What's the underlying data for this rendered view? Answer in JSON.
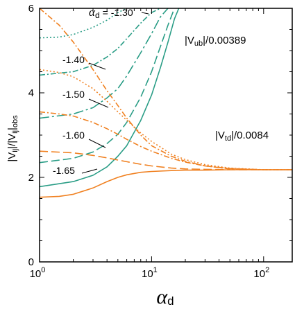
{
  "chart_data": {
    "type": "line",
    "xlabel_symbol": "α",
    "xlabel_sub": "d",
    "ylabel_main": "|V",
    "ylabel_sub1": "ij",
    "ylabel_mid": "|/|V",
    "ylabel_sub2": "ij",
    "ylabel_end": "|",
    "ylabel_sub3": "obs",
    "x_scale": "log",
    "xlim": [
      1,
      180
    ],
    "ylim": [
      0,
      6
    ],
    "x_ticks": [
      {
        "value": 1,
        "base": "10",
        "exp": "0"
      },
      {
        "value": 10,
        "base": "10",
        "exp": "1"
      },
      {
        "value": 100,
        "base": "10",
        "exp": "2"
      }
    ],
    "y_ticks": [
      0,
      2,
      4,
      6
    ],
    "colors": {
      "vub": "#2a9d86",
      "vtd": "#f08020"
    },
    "group_labels": {
      "vub": {
        "pre": "|V",
        "sub": "ub",
        "post": "|/0.00389"
      },
      "vtd": {
        "pre": "|V",
        "sub": "td",
        "post": "|/0.0084"
      }
    },
    "curve_labels": [
      {
        "param": "-1.30",
        "prefix": "α",
        "prefix_sub": "d",
        "eq": "= "
      },
      {
        "param": "-1.40"
      },
      {
        "param": "-1.50"
      },
      {
        "param": "-1.60"
      },
      {
        "param": "-1.65"
      }
    ],
    "series": [
      {
        "group": "vub",
        "param": "-1.30",
        "dash": "dotted",
        "x": [
          1,
          1.5,
          2,
          3,
          4,
          5,
          6
        ],
        "y": [
          5.3,
          5.32,
          5.38,
          5.55,
          5.72,
          5.9,
          6.0
        ]
      },
      {
        "group": "vub",
        "param": "-1.40",
        "dash": "dashdot",
        "x": [
          1,
          2,
          3,
          4,
          5,
          6,
          8,
          10,
          12
        ],
        "y": [
          4.42,
          4.5,
          4.65,
          4.85,
          5.05,
          5.28,
          5.65,
          5.9,
          6.0
        ]
      },
      {
        "group": "vub",
        "param": "-1.50",
        "dash": "longdashdot",
        "x": [
          1,
          2,
          3,
          4,
          5,
          6,
          8,
          10,
          12,
          14
        ],
        "y": [
          3.4,
          3.5,
          3.65,
          3.88,
          4.1,
          4.4,
          4.95,
          5.4,
          5.8,
          6.0
        ]
      },
      {
        "group": "vub",
        "param": "-1.60",
        "dash": "longdash",
        "x": [
          1,
          2,
          3,
          4,
          5,
          6,
          8,
          10,
          12,
          14,
          16
        ],
        "y": [
          2.35,
          2.45,
          2.6,
          2.8,
          3.02,
          3.3,
          3.9,
          4.5,
          5.1,
          5.6,
          6.0
        ]
      },
      {
        "group": "vub",
        "param": "-1.65",
        "dash": "solid",
        "x": [
          1,
          2,
          3,
          4,
          5,
          6,
          8,
          10,
          12,
          14,
          16,
          17.5
        ],
        "y": [
          1.78,
          1.9,
          2.05,
          2.25,
          2.5,
          2.75,
          3.35,
          3.95,
          4.6,
          5.2,
          5.75,
          6.0
        ]
      },
      {
        "group": "vtd",
        "param": "-1.30",
        "dash": "dashdot",
        "x": [
          1,
          1.5,
          2,
          3,
          4,
          5,
          6,
          8,
          10,
          15,
          20,
          30,
          50,
          100,
          180
        ],
        "y": [
          6.0,
          5.6,
          5.2,
          4.55,
          4.05,
          3.7,
          3.4,
          3.0,
          2.75,
          2.5,
          2.38,
          2.27,
          2.2,
          2.18,
          2.18
        ]
      },
      {
        "group": "vtd",
        "param": "-1.40",
        "dash": "dotted",
        "x": [
          1,
          1.5,
          2,
          3,
          4,
          5,
          6,
          8,
          10,
          15,
          20,
          30,
          50,
          100,
          180
        ],
        "y": [
          4.55,
          4.48,
          4.38,
          4.1,
          3.8,
          3.55,
          3.35,
          3.05,
          2.85,
          2.55,
          2.42,
          2.3,
          2.22,
          2.18,
          2.18
        ]
      },
      {
        "group": "vtd",
        "param": "-1.50",
        "dash": "dashdot",
        "x": [
          1,
          1.5,
          2,
          3,
          4,
          5,
          6,
          8,
          10,
          15,
          20,
          30,
          50,
          100,
          180
        ],
        "y": [
          3.55,
          3.5,
          3.45,
          3.3,
          3.15,
          3.02,
          2.9,
          2.73,
          2.62,
          2.45,
          2.36,
          2.27,
          2.21,
          2.18,
          2.18
        ]
      },
      {
        "group": "vtd",
        "param": "-1.60",
        "dash": "longdash",
        "x": [
          1,
          2,
          3,
          4,
          5,
          6,
          8,
          10,
          15,
          20,
          30,
          50,
          100,
          180
        ],
        "y": [
          2.62,
          2.58,
          2.52,
          2.46,
          2.41,
          2.37,
          2.31,
          2.27,
          2.22,
          2.2,
          2.19,
          2.18,
          2.18,
          2.18
        ]
      },
      {
        "group": "vtd",
        "param": "-1.65",
        "dash": "solid",
        "x": [
          1,
          1.5,
          2,
          3,
          4,
          5,
          6,
          8,
          10,
          15,
          20,
          30,
          50,
          100,
          180
        ],
        "y": [
          1.53,
          1.55,
          1.6,
          1.75,
          1.9,
          2.0,
          2.06,
          2.12,
          2.14,
          2.16,
          2.17,
          2.17,
          2.18,
          2.18,
          2.18
        ]
      }
    ]
  }
}
